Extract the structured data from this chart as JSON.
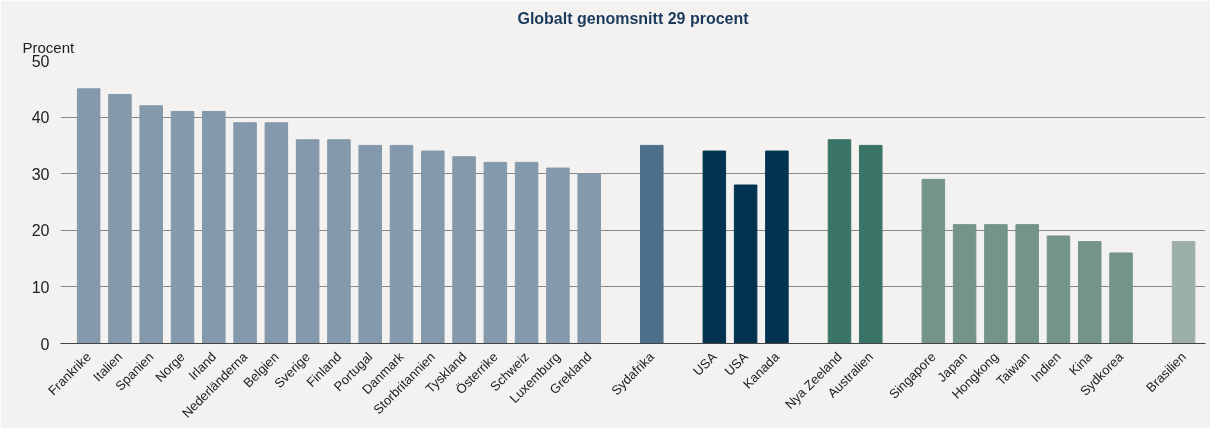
{
  "chart_data": {
    "type": "bar",
    "title": "Globalt genomsnitt 29 procent",
    "ylabel": "Procent",
    "categories": [
      "Frankrike",
      "Italien",
      "Spanien",
      "Norge",
      "Irland",
      "Nederländerna",
      "Belgien",
      "Sverige",
      "Finland",
      "Portugal",
      "Danmark",
      "Storbritannien",
      "Tyskland",
      "Österrike",
      "Schweiz",
      "Luxemburg",
      "Grekland",
      null,
      "Sydafrika",
      null,
      "USA",
      "USA",
      "Kanada",
      null,
      "Nya Zeeland",
      "Australien",
      null,
      "Singapore",
      "Japan",
      "Hongkong",
      "Taiwan",
      "Indien",
      "Kina",
      "Sydkorea",
      null,
      "Brasilien"
    ],
    "values": [
      45,
      44,
      42,
      41,
      41,
      39,
      39,
      36,
      36,
      35,
      35,
      34,
      33,
      32,
      32,
      31,
      30,
      null,
      35,
      null,
      34,
      28,
      34,
      null,
      36,
      35,
      null,
      29,
      21,
      21,
      21,
      19,
      18,
      16,
      null,
      18
    ],
    "colors": [
      "#8499ab",
      "#8499ab",
      "#8499ab",
      "#8499ab",
      "#8499ab",
      "#8499ab",
      "#8499ab",
      "#8499ab",
      "#8499ab",
      "#8499ab",
      "#8499ab",
      "#8499ab",
      "#8499ab",
      "#8499ab",
      "#8499ab",
      "#8499ab",
      "#8499ab",
      null,
      "#4e6f8a",
      null,
      "#023452",
      "#023452",
      "#023452",
      null,
      "#3a7467",
      "#3a7467",
      null,
      "#74948a",
      "#74948a",
      "#74948a",
      "#74948a",
      "#74948a",
      "#74948a",
      "#74948a",
      null,
      "#9cb0a8"
    ],
    "ylim": [
      0,
      50
    ],
    "yticks": [
      0,
      10,
      20,
      30,
      40,
      50
    ],
    "grid": "y"
  }
}
